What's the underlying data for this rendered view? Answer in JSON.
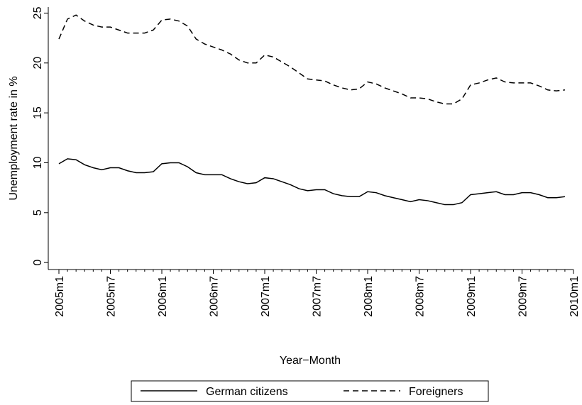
{
  "chart_data": {
    "type": "line",
    "xlabel": "Year−Month",
    "ylabel": "Unemployment rate in %",
    "x": [
      0,
      1,
      2,
      3,
      4,
      5,
      6,
      7,
      8,
      9,
      10,
      11,
      12,
      13,
      14,
      15,
      16,
      17,
      18,
      19,
      20,
      21,
      22,
      23,
      24,
      25,
      26,
      27,
      28,
      29,
      30,
      31,
      32,
      33,
      34,
      35,
      36,
      37,
      38,
      39,
      40,
      41,
      42,
      43,
      44,
      45,
      46,
      47,
      48,
      49,
      50,
      51,
      52,
      53,
      54,
      55,
      56,
      57,
      58,
      59
    ],
    "series": [
      {
        "name": "German citizens",
        "color": "#000000",
        "dash": "solid",
        "values": [
          9.9,
          10.4,
          10.3,
          9.8,
          9.5,
          9.3,
          9.5,
          9.5,
          9.2,
          9.0,
          9.0,
          9.1,
          9.9,
          10.0,
          10.0,
          9.6,
          9.0,
          8.8,
          8.8,
          8.8,
          8.4,
          8.1,
          7.9,
          8.0,
          8.5,
          8.4,
          8.1,
          7.8,
          7.4,
          7.2,
          7.3,
          7.3,
          6.9,
          6.7,
          6.6,
          6.6,
          7.1,
          7.0,
          6.7,
          6.5,
          6.3,
          6.1,
          6.3,
          6.2,
          6.0,
          5.8,
          5.8,
          6.0,
          6.8,
          6.9,
          7.0,
          7.1,
          6.8,
          6.8,
          7.0,
          7.0,
          6.8,
          6.5,
          6.5,
          6.6
        ]
      },
      {
        "name": "Foreigners",
        "color": "#000000",
        "dash": "dashed",
        "values": [
          22.4,
          24.4,
          24.8,
          24.2,
          23.8,
          23.6,
          23.6,
          23.3,
          23.0,
          23.0,
          23.0,
          23.3,
          24.3,
          24.4,
          24.2,
          23.7,
          22.4,
          21.9,
          21.6,
          21.3,
          20.9,
          20.3,
          20.0,
          20.0,
          20.8,
          20.6,
          20.1,
          19.6,
          19.0,
          18.4,
          18.3,
          18.2,
          17.8,
          17.5,
          17.3,
          17.4,
          18.1,
          17.9,
          17.5,
          17.2,
          16.9,
          16.5,
          16.5,
          16.4,
          16.1,
          15.9,
          15.9,
          16.4,
          17.8,
          18.0,
          18.3,
          18.5,
          18.1,
          18.0,
          18.0,
          18.0,
          17.7,
          17.3,
          17.2,
          17.3
        ]
      }
    ],
    "xlim": [
      0,
      60
    ],
    "xticks": [
      {
        "value": 0,
        "label": "2005m1"
      },
      {
        "value": 6,
        "label": "2005m7"
      },
      {
        "value": 12,
        "label": "2006m1"
      },
      {
        "value": 18,
        "label": "2006m7"
      },
      {
        "value": 24,
        "label": "2007m1"
      },
      {
        "value": 30,
        "label": "2007m7"
      },
      {
        "value": 36,
        "label": "2008m1"
      },
      {
        "value": 42,
        "label": "2008m7"
      },
      {
        "value": 48,
        "label": "2009m1"
      },
      {
        "value": 54,
        "label": "2009m7"
      },
      {
        "value": 60,
        "label": "2010m1"
      }
    ],
    "ylim": [
      -0.7,
      25.6
    ],
    "yticks": [
      0,
      5,
      10,
      15,
      20,
      25
    ],
    "grid": false,
    "legend": "bottom"
  }
}
